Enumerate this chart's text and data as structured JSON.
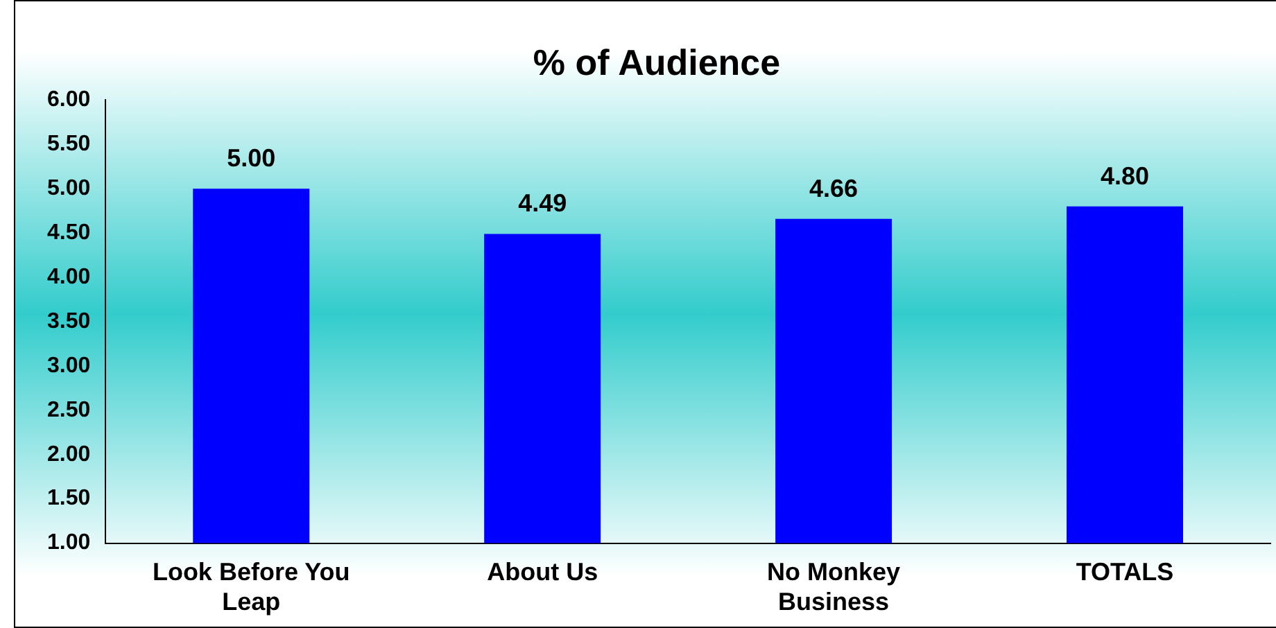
{
  "chart_data": {
    "type": "bar",
    "title": "% of Audience",
    "categories": [
      "Look Before You Leap",
      "About Us",
      "No Monkey Business",
      "TOTALS"
    ],
    "values": [
      5.0,
      4.49,
      4.66,
      4.8
    ],
    "value_labels": [
      "5.00",
      "4.49",
      "4.66",
      "4.80"
    ],
    "color": "#0000ff",
    "ylim": [
      1,
      6
    ],
    "yticks": [
      {
        "value": 1,
        "label": "1.00"
      },
      {
        "value": 1.5,
        "label": "1.50"
      },
      {
        "value": 2,
        "label": "2.00"
      },
      {
        "value": 2.5,
        "label": "2.50"
      },
      {
        "value": 3,
        "label": "3.00"
      },
      {
        "value": 3.5,
        "label": "3.50"
      },
      {
        "value": 4,
        "label": "4.00"
      },
      {
        "value": 4.5,
        "label": "4.50"
      },
      {
        "value": 5,
        "label": "5.00"
      },
      {
        "value": 5.5,
        "label": "5.50"
      },
      {
        "value": 6,
        "label": "6.00"
      }
    ],
    "grid": false,
    "legend": false
  }
}
